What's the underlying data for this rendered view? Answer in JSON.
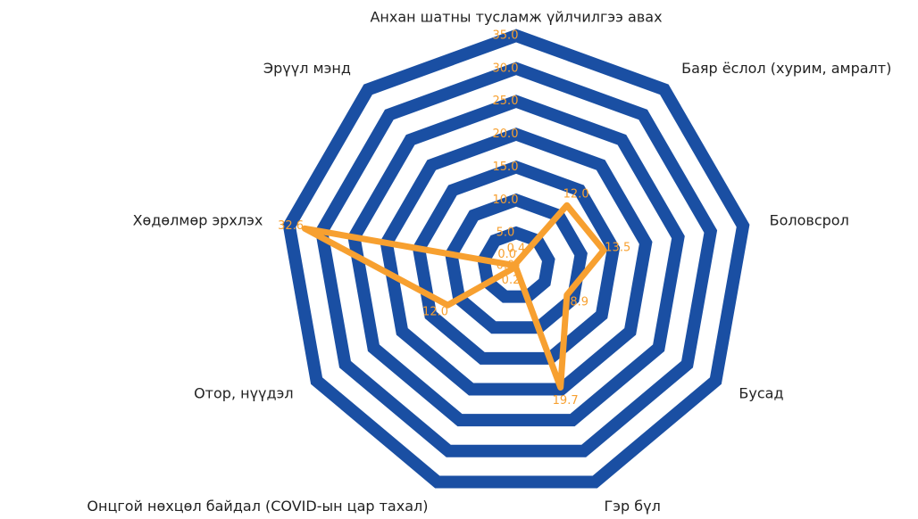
{
  "chart_data": {
    "type": "radar",
    "categories": [
      "Анхан шатны тусламж үйлчилгээ авах",
      "Баяр ёслол (хурим, амралт)",
      "Боловсрол",
      "Бусад",
      "Гэр бүл",
      "Онцгой нөхцөл байдал (COVID-ын цар тахал)",
      "Отор, нүүдэл",
      "Хөдөлмөр эрхлэх",
      "Эрүүл мэнд"
    ],
    "values": [
      0.4,
      12,
      13.5,
      8.9,
      19.7,
      0.2,
      12,
      32.6,
      0
    ],
    "value_labels": [
      "0.4",
      "12.0",
      "13.5",
      "8.9",
      "19.7",
      "0.2",
      "12.0",
      "32.6",
      "0.0"
    ],
    "color": "#f7a030",
    "grid_color": "#1a4fa3",
    "ylim": [
      0,
      35
    ],
    "yticks": [
      {
        "value": 0,
        "label": "0.0"
      },
      {
        "value": 5,
        "label": "5.0"
      },
      {
        "value": 10,
        "label": "10.0"
      },
      {
        "value": 15,
        "label": "15.0"
      },
      {
        "value": 20,
        "label": "20.0"
      },
      {
        "value": 25,
        "label": "25.0"
      },
      {
        "value": 30,
        "label": "30.0"
      },
      {
        "value": 35,
        "label": "35.0"
      }
    ],
    "grid": true
  }
}
